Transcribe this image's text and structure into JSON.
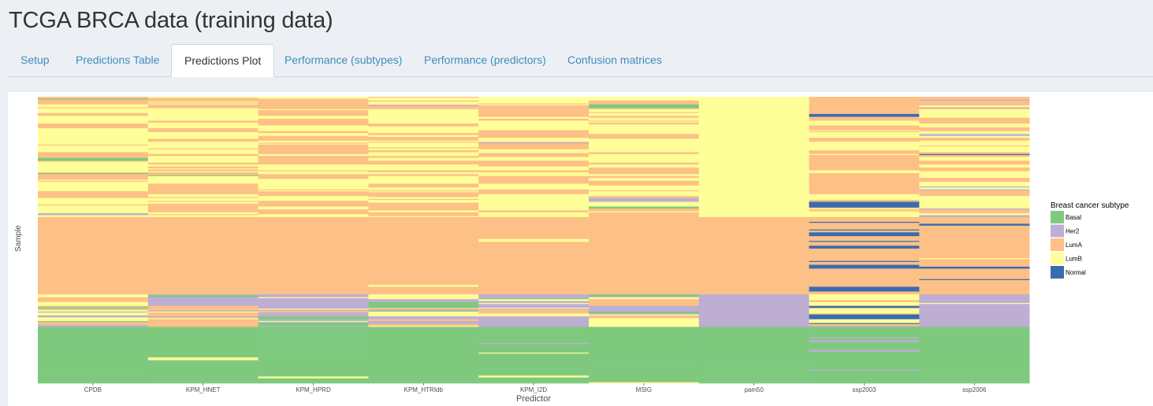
{
  "page": {
    "title": "TCGA BRCA data (training data)"
  },
  "tabs": [
    {
      "label": "Setup",
      "active": false
    },
    {
      "label": "Predictions Table",
      "active": false
    },
    {
      "label": "Predictions Plot",
      "active": true
    },
    {
      "label": "Performance (subtypes)",
      "active": false
    },
    {
      "label": "Performance (predictors)",
      "active": false
    },
    {
      "label": "Confusion matrices",
      "active": false
    }
  ],
  "chart_data": {
    "type": "heatmap",
    "title": "",
    "xlabel": "Predictor",
    "ylabel": "Sample",
    "categories": [
      "CPDB",
      "KPM_HNET",
      "KPM_HPRD",
      "KPM_HTRIdb",
      "KPM_I2D",
      "MSIG",
      "pam50",
      "ssp2003",
      "ssp2006"
    ],
    "legend": {
      "title": "Breast cancer subtype",
      "placement": "right",
      "entries": [
        {
          "label": "Basal",
          "color": "#7fc97f"
        },
        {
          "label": "Her2",
          "color": "#beaed4"
        },
        {
          "label": "LumA",
          "color": "#fdc086"
        },
        {
          "label": "LumB",
          "color": "#ffff99"
        },
        {
          "label": "Normal",
          "color": "#386cb0"
        }
      ]
    },
    "sample_groups_by_pam50": [
      {
        "subtype": "LumB",
        "fraction": 0.42
      },
      {
        "subtype": "LumA",
        "fraction": 0.27
      },
      {
        "subtype": "Her2",
        "fraction": 0.115
      },
      {
        "subtype": "Basal",
        "fraction": 0.195
      }
    ],
    "predictor_profiles": [
      {
        "predictor": "CPDB",
        "profile": [
          [
            "LumB mixed with LumA",
            0.42
          ],
          [
            "LumA",
            0.28
          ],
          [
            "Her2/LumB/Basal mixed",
            0.11
          ],
          [
            "Basal",
            0.19
          ]
        ]
      },
      {
        "predictor": "KPM_HNET",
        "profile": [
          [
            "LumB mixed with LumA",
            0.42
          ],
          [
            "LumA",
            0.28
          ],
          [
            "Her2/LumB mixed",
            0.11
          ],
          [
            "Basal",
            0.19
          ]
        ]
      },
      {
        "predictor": "KPM_HPRD",
        "profile": [
          [
            "LumB mixed with LumA",
            0.42
          ],
          [
            "LumA",
            0.28
          ],
          [
            "Her2/LumB mixed",
            0.11
          ],
          [
            "Basal",
            0.19
          ]
        ]
      },
      {
        "predictor": "KPM_HTRIdb",
        "profile": [
          [
            "LumB mixed with LumA",
            0.42
          ],
          [
            "LumA",
            0.28
          ],
          [
            "Her2/LumB mixed",
            0.11
          ],
          [
            "Basal",
            0.19
          ]
        ]
      },
      {
        "predictor": "KPM_I2D",
        "profile": [
          [
            "LumB mixed with LumA",
            0.42
          ],
          [
            "LumA",
            0.28
          ],
          [
            "Her2/LumB mixed",
            0.11
          ],
          [
            "Basal",
            0.19
          ]
        ]
      },
      {
        "predictor": "MSIG",
        "profile": [
          [
            "LumB mixed with LumA",
            0.42
          ],
          [
            "LumA",
            0.28
          ],
          [
            "Her2/LumB mixed",
            0.11
          ],
          [
            "Basal",
            0.19
          ]
        ]
      },
      {
        "predictor": "pam50",
        "profile": [
          [
            "LumB",
            0.42
          ],
          [
            "LumA",
            0.27
          ],
          [
            "Her2",
            0.115
          ],
          [
            "Basal",
            0.195
          ]
        ]
      },
      {
        "predictor": "ssp2003",
        "profile": [
          [
            "LumA mixed with LumB and Normal",
            0.42
          ],
          [
            "LumA mixed with Normal",
            0.27
          ],
          [
            "LumB/Her2 mixed",
            0.115
          ],
          [
            "Basal",
            0.195
          ]
        ]
      },
      {
        "predictor": "ssp2006",
        "profile": [
          [
            "LumB mixed with LumA and Normal",
            0.42
          ],
          [
            "LumA mixed with Normal",
            0.27
          ],
          [
            "Her2 mixed",
            0.115
          ],
          [
            "Basal",
            0.195
          ]
        ]
      }
    ]
  }
}
